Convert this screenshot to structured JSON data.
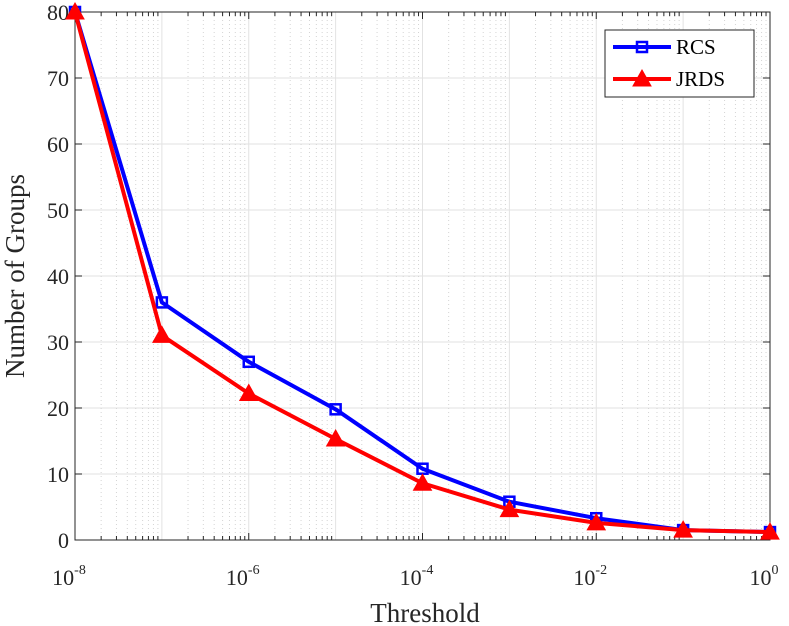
{
  "chart_data": {
    "type": "line",
    "title": "",
    "xlabel": "Threshold",
    "ylabel": "Number of Groups",
    "xscale": "log10",
    "xlim_exponent": [
      -8,
      0
    ],
    "ylim": [
      0,
      80
    ],
    "x_ticks": [
      {
        "base": "10",
        "exp": "-8",
        "value": -8
      },
      {
        "base": "10",
        "exp": "-6",
        "value": -6
      },
      {
        "base": "10",
        "exp": "-4",
        "value": -4
      },
      {
        "base": "10",
        "exp": "-2",
        "value": -2
      },
      {
        "base": "10",
        "exp": "0",
        "value": 0
      }
    ],
    "y_ticks": [
      "0",
      "10",
      "20",
      "30",
      "40",
      "50",
      "60",
      "70",
      "80"
    ],
    "grid": true,
    "legend_position": "top-right",
    "x_exponents": [
      -8,
      -7,
      -6,
      -5,
      -4,
      -3,
      -2,
      -1,
      0
    ],
    "series": [
      {
        "name": "RCS",
        "color": "#0000FF",
        "marker": "square",
        "values": [
          80,
          36,
          27,
          19.8,
          10.8,
          5.8,
          3.3,
          1.5,
          1.2
        ]
      },
      {
        "name": "JRDS",
        "color": "#FF0000",
        "marker": "triangle",
        "values": [
          80,
          31,
          22.2,
          15.3,
          8.6,
          4.6,
          2.6,
          1.5,
          1.2
        ]
      }
    ]
  }
}
